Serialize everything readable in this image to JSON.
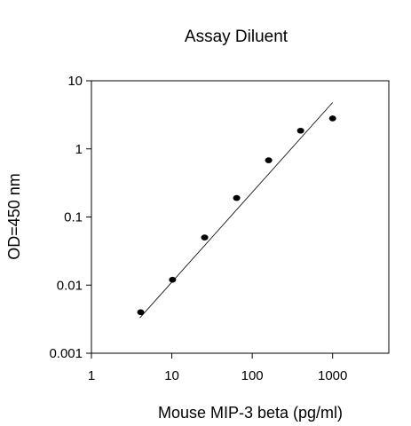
{
  "chart_data": {
    "type": "scatter",
    "title": "Assay Diluent",
    "xlabel": "Mouse MIP-3 beta (pg/ml)",
    "ylabel": "OD=450 nm",
    "x_scale": "log",
    "y_scale": "log",
    "xlim": [
      1,
      5000
    ],
    "ylim": [
      0.001,
      10
    ],
    "x_ticks": [
      {
        "value": 1,
        "label": "1"
      },
      {
        "value": 10,
        "label": "10"
      },
      {
        "value": 100,
        "label": "100"
      },
      {
        "value": 1000,
        "label": "1000"
      }
    ],
    "y_ticks": [
      {
        "value": 0.001,
        "label": "0.001"
      },
      {
        "value": 0.01,
        "label": "0.01"
      },
      {
        "value": 0.1,
        "label": "0.1"
      },
      {
        "value": 1,
        "label": "1"
      },
      {
        "value": 10,
        "label": "10"
      }
    ],
    "grid": false,
    "series": [
      {
        "points": [
          {
            "x": 4.1,
            "y": 0.004
          },
          {
            "x": 10.2,
            "y": 0.012
          },
          {
            "x": 25.6,
            "y": 0.05
          },
          {
            "x": 64,
            "y": 0.19
          },
          {
            "x": 160,
            "y": 0.68
          },
          {
            "x": 400,
            "y": 1.85
          },
          {
            "x": 1000,
            "y": 2.8
          }
        ]
      }
    ],
    "fit_line": {
      "x": [
        4,
        1000
      ],
      "y": [
        0.0033,
        4.8
      ]
    },
    "colors": {
      "points": "#000000",
      "line": "#000000",
      "axes": "#000000"
    }
  }
}
